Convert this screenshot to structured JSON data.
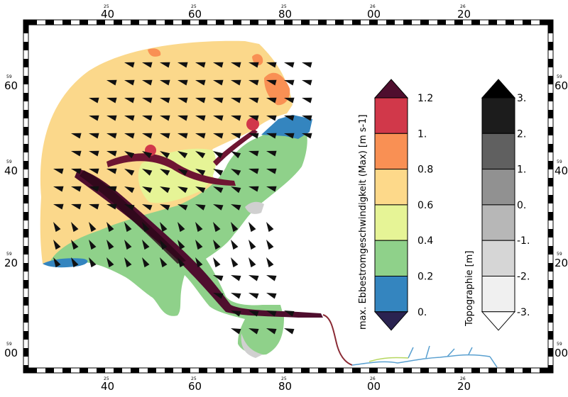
{
  "map": {
    "top_ticks": [
      {
        "deg": "25",
        "min": "40"
      },
      {
        "deg": "25",
        "min": "60"
      },
      {
        "deg": "25",
        "min": "80"
      },
      {
        "deg": "26",
        "min": "00"
      },
      {
        "deg": "26",
        "min": "20"
      }
    ],
    "left_ticks": [
      {
        "deg": "59",
        "min": "60"
      },
      {
        "deg": "59",
        "min": "40"
      },
      {
        "deg": "59",
        "min": "20"
      },
      {
        "deg": "59",
        "min": "00"
      }
    ],
    "velocity_colorbar": {
      "title": "max. Ebbestromgeschwindigkeit (Max) [m s-1]",
      "labels": [
        "1.2",
        "1.",
        "0.8",
        "0.6",
        "0.4",
        "0.2",
        "0."
      ],
      "colors": [
        "#d1384a",
        "#f99054",
        "#fdd98a",
        "#e6f496",
        "#8fd18a",
        "#3485bf"
      ],
      "over_color": "#4f0e2e",
      "under_color": "#2a2350"
    },
    "topo_colorbar": {
      "title": "Topographie [m]",
      "labels": [
        "3.",
        "2.",
        "1.",
        "0.",
        "-1.",
        "-2.",
        "-3."
      ],
      "colors": [
        "#1c1c1c",
        "#606060",
        "#919191",
        "#b7b7b7",
        "#d6d6d6",
        "#f0f0f0"
      ],
      "over_color": "#000000",
      "under_color": "#ffffff"
    }
  }
}
